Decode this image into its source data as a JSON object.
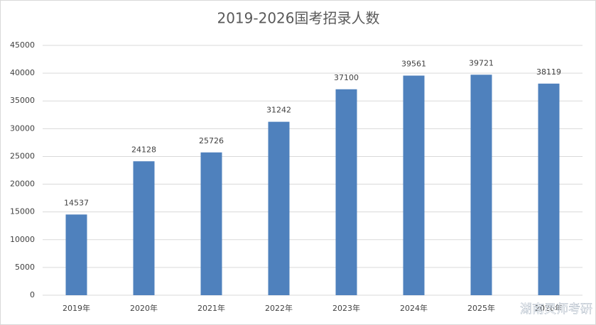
{
  "chart_data": {
    "type": "bar",
    "title": "2019-2026国考招录人数",
    "categories": [
      "2019年",
      "2020年",
      "2021年",
      "2022年",
      "2023年",
      "2024年",
      "2025年",
      "2026年"
    ],
    "values": [
      14537,
      24128,
      25726,
      31242,
      37100,
      39561,
      39721,
      38119
    ],
    "color": "#4f81bd",
    "ylim": [
      0,
      45000
    ],
    "yticks": [
      0,
      5000,
      10000,
      15000,
      20000,
      25000,
      30000,
      35000,
      40000,
      45000
    ],
    "grid": true,
    "watermark": "湖南灵师考研"
  }
}
